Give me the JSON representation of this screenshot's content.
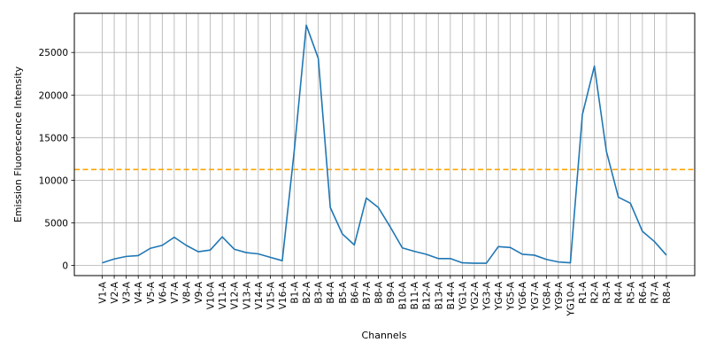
{
  "chart_data": {
    "type": "line",
    "title": "",
    "xlabel": "Channels",
    "ylabel": "Emission Fluorescence Intensity",
    "ylim": [
      -1200,
      29600
    ],
    "yticks": [
      0,
      5000,
      10000,
      15000,
      20000,
      25000
    ],
    "ytick_labels": [
      "0",
      "5000",
      "10000",
      "15000",
      "20000",
      "25000"
    ],
    "grid": true,
    "categories": [
      "V1-A",
      "V2-A",
      "V3-A",
      "V4-A",
      "V5-A",
      "V6-A",
      "V7-A",
      "V8-A",
      "V9-A",
      "V10-A",
      "V11-A",
      "V12-A",
      "V13-A",
      "V14-A",
      "V15-A",
      "V16-A",
      "B1-A",
      "B2-A",
      "B3-A",
      "B4-A",
      "B5-A",
      "B6-A",
      "B7-A",
      "B8-A",
      "B9-A",
      "B10-A",
      "B11-A",
      "B12-A",
      "B13-A",
      "B14-A",
      "YG1-A",
      "YG2-A",
      "YG3-A",
      "YG4-A",
      "YG5-A",
      "YG6-A",
      "YG7-A",
      "YG8-A",
      "YG9-A",
      "YG10-A",
      "R1-A",
      "R2-A",
      "R3-A",
      "R4-A",
      "R5-A",
      "R6-A",
      "R7-A",
      "R8-A"
    ],
    "series": [
      {
        "color": "#1f77b4",
        "values": [
          300,
          750,
          1050,
          1150,
          2000,
          2350,
          3300,
          2350,
          1600,
          1800,
          3350,
          1900,
          1500,
          1350,
          950,
          550,
          13500,
          28200,
          24300,
          6800,
          3700,
          2400,
          7900,
          6800,
          4500,
          2050,
          1650,
          1300,
          800,
          800,
          300,
          250,
          250,
          2200,
          2100,
          1300,
          1200,
          700,
          400,
          300,
          17700,
          23400,
          13400,
          8000,
          7300,
          4000,
          2800,
          1200
        ]
      }
    ],
    "threshold": {
      "value": 11250,
      "color": "#ffa500",
      "style": "dashed"
    }
  }
}
